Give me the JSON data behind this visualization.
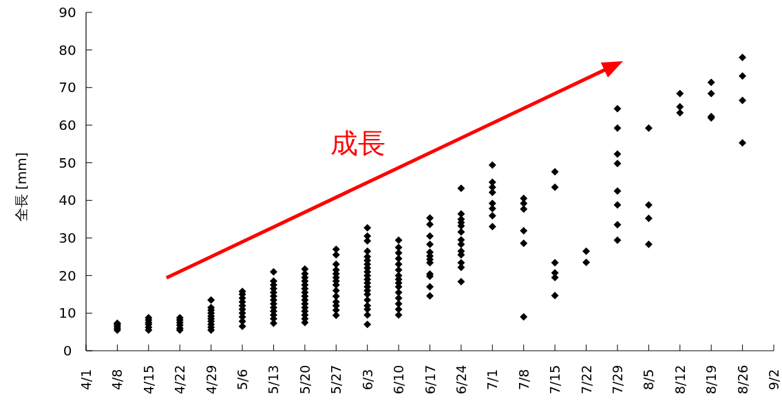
{
  "chart_data": {
    "type": "scatter",
    "ylabel": "全長 [mm]",
    "annotations": [
      "成長"
    ],
    "marker": "diamond",
    "color": "#000000",
    "grid": false,
    "xlim": [
      "--04-01",
      "--09-02"
    ],
    "xticks": [
      {
        "value": "--04-01",
        "label": "4/1"
      },
      {
        "value": "--04-08",
        "label": "4/8"
      },
      {
        "value": "--04-15",
        "label": "4/15"
      },
      {
        "value": "--04-22",
        "label": "4/22"
      },
      {
        "value": "--04-29",
        "label": "4/29"
      },
      {
        "value": "--05-06",
        "label": "5/6"
      },
      {
        "value": "--05-13",
        "label": "5/13"
      },
      {
        "value": "--05-20",
        "label": "5/20"
      },
      {
        "value": "--05-27",
        "label": "5/27"
      },
      {
        "value": "--06-03",
        "label": "6/3"
      },
      {
        "value": "--06-10",
        "label": "6/10"
      },
      {
        "value": "--06-17",
        "label": "6/17"
      },
      {
        "value": "--06-24",
        "label": "6/24"
      },
      {
        "value": "--07-01",
        "label": "7/1"
      },
      {
        "value": "--07-08",
        "label": "7/8"
      },
      {
        "value": "--07-15",
        "label": "7/15"
      },
      {
        "value": "--07-22",
        "label": "7/22"
      },
      {
        "value": "--07-29",
        "label": "7/29"
      },
      {
        "value": "--08-05",
        "label": "8/5"
      },
      {
        "value": "--08-12",
        "label": "8/12"
      },
      {
        "value": "--08-19",
        "label": "8/19"
      },
      {
        "value": "--08-26",
        "label": "8/26"
      },
      {
        "value": "--09-02",
        "label": "9/2"
      }
    ],
    "ylim": [
      0,
      90
    ],
    "yticks": [
      0,
      10,
      20,
      30,
      40,
      50,
      60,
      70,
      80,
      90
    ],
    "x": [
      "--04-08",
      "--04-08",
      "--04-08",
      "--04-08",
      "--04-08",
      "--04-15",
      "--04-15",
      "--04-15",
      "--04-15",
      "--04-15",
      "--04-15",
      "--04-22",
      "--04-22",
      "--04-22",
      "--04-22",
      "--04-22",
      "--04-22",
      "--04-29",
      "--04-29",
      "--04-29",
      "--04-29",
      "--04-29",
      "--04-29",
      "--04-29",
      "--04-29",
      "--04-29",
      "--04-29",
      "--05-06",
      "--05-06",
      "--05-06",
      "--05-06",
      "--05-06",
      "--05-06",
      "--05-06",
      "--05-06",
      "--05-06",
      "--05-06",
      "--05-13",
      "--05-13",
      "--05-13",
      "--05-13",
      "--05-13",
      "--05-13",
      "--05-13",
      "--05-13",
      "--05-13",
      "--05-13",
      "--05-13",
      "--05-13",
      "--05-13",
      "--05-20",
      "--05-20",
      "--05-20",
      "--05-20",
      "--05-20",
      "--05-20",
      "--05-20",
      "--05-20",
      "--05-20",
      "--05-20",
      "--05-20",
      "--05-20",
      "--05-20",
      "--05-20",
      "--05-20",
      "--05-27",
      "--05-27",
      "--05-27",
      "--05-27",
      "--05-27",
      "--05-27",
      "--05-27",
      "--05-27",
      "--05-27",
      "--05-27",
      "--05-27",
      "--05-27",
      "--05-27",
      "--05-27",
      "--06-03",
      "--06-03",
      "--06-03",
      "--06-03",
      "--06-03",
      "--06-03",
      "--06-03",
      "--06-03",
      "--06-03",
      "--06-03",
      "--06-03",
      "--06-03",
      "--06-03",
      "--06-03",
      "--06-03",
      "--06-03",
      "--06-03",
      "--06-03",
      "--06-03",
      "--06-03",
      "--06-10",
      "--06-10",
      "--06-10",
      "--06-10",
      "--06-10",
      "--06-10",
      "--06-10",
      "--06-10",
      "--06-10",
      "--06-10",
      "--06-10",
      "--06-10",
      "--06-10",
      "--06-10",
      "--06-10",
      "--06-17",
      "--06-17",
      "--06-17",
      "--06-17",
      "--06-17",
      "--06-17",
      "--06-17",
      "--06-17",
      "--06-17",
      "--06-17",
      "--06-17",
      "--06-17",
      "--06-24",
      "--06-24",
      "--06-24",
      "--06-24",
      "--06-24",
      "--06-24",
      "--06-24",
      "--06-24",
      "--06-24",
      "--06-24",
      "--06-24",
      "--06-24",
      "--06-24",
      "--07-01",
      "--07-01",
      "--07-01",
      "--07-01",
      "--07-01",
      "--07-01",
      "--07-01",
      "--07-01",
      "--07-08",
      "--07-08",
      "--07-08",
      "--07-08",
      "--07-08",
      "--07-08",
      "--07-15",
      "--07-15",
      "--07-15",
      "--07-15",
      "--07-15",
      "--07-15",
      "--07-22",
      "--07-22",
      "--07-29",
      "--07-29",
      "--07-29",
      "--07-29",
      "--07-29",
      "--07-29",
      "--07-29",
      "--07-29",
      "--08-05",
      "--08-05",
      "--08-05",
      "--08-05",
      "--08-12",
      "--08-12",
      "--08-12",
      "--08-19",
      "--08-19",
      "--08-19",
      "--08-19",
      "--08-26",
      "--08-26",
      "--08-26",
      "--08-26"
    ],
    "values": [
      5.5,
      6,
      6.5,
      7,
      7.3,
      5.5,
      6.2,
      7,
      7.5,
      8.2,
      8.8,
      5.5,
      6,
      6.8,
      7.5,
      8.2,
      8.8,
      5.5,
      6.2,
      7,
      7.8,
      8.5,
      9.2,
      10,
      10.8,
      11.5,
      13.5,
      6.5,
      7.8,
      9,
      10,
      11,
      12,
      13,
      14,
      15,
      15.8,
      7.3,
      8.5,
      9.5,
      10.5,
      11.5,
      12.5,
      13.5,
      14.5,
      15.5,
      16.5,
      17.5,
      18.5,
      21,
      7.5,
      8.5,
      9.5,
      10.5,
      11.5,
      12.5,
      13.5,
      14.5,
      15.5,
      16.5,
      17.5,
      18.5,
      19.5,
      20.5,
      21.7,
      9.4,
      10.8,
      12,
      13,
      14.5,
      16,
      17.5,
      18.5,
      19.5,
      20.5,
      21.5,
      23,
      25.5,
      27,
      7,
      9.5,
      11,
      12,
      13.5,
      15,
      16,
      17,
      18,
      19,
      20,
      21,
      22,
      23,
      24,
      25,
      26.5,
      29.2,
      30.5,
      32.7,
      9.5,
      11,
      12.5,
      14,
      15.5,
      17,
      18,
      19,
      20,
      21.5,
      23,
      24.5,
      26,
      27.5,
      29.4,
      35.3,
      33.6,
      30.5,
      28.3,
      26.2,
      25.2,
      24.3,
      23.4,
      20.4,
      19.8,
      17,
      14.6,
      43.2,
      36.4,
      35,
      34.1,
      33.2,
      31.6,
      29.5,
      28.3,
      26.5,
      25.5,
      23.4,
      22.2,
      18.4,
      49.4,
      44.8,
      43.5,
      42.1,
      39.2,
      37.8,
      35.9,
      33,
      40.5,
      39.2,
      37.7,
      31.9,
      28.6,
      9,
      47.6,
      43.5,
      23.4,
      20.7,
      19.5,
      14.7,
      26.5,
      23.5,
      64.4,
      59.2,
      52.3,
      49.8,
      42.5,
      38.8,
      33.5,
      29.4,
      59.2,
      38.8,
      35.2,
      28.3,
      68.4,
      64.9,
      63.3,
      71.4,
      68.4,
      62.3,
      61.9,
      78,
      73.1,
      66.6,
      55.3
    ]
  }
}
